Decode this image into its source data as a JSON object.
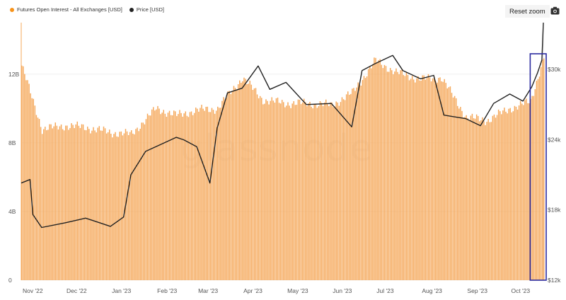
{
  "legend": {
    "items": [
      {
        "label": "Futures Open Interest - All Exchanges [USD]",
        "color": "#f7931a"
      },
      {
        "label": "Price [USD]",
        "color": "#222222"
      }
    ]
  },
  "toolbar": {
    "reset_label": "Reset zoom"
  },
  "watermark": {
    "text": "glassnode"
  },
  "chart_data": {
    "type": "bar",
    "series": [
      {
        "name": "Futures Open Interest - All Exchanges [USD]",
        "type": "bar",
        "axis": "left",
        "color": "#f5a85a",
        "x": [
          "2022-11-01",
          "2022-11-15",
          "2022-12-01",
          "2022-12-15",
          "2023-01-01",
          "2023-01-15",
          "2023-02-01",
          "2023-02-15",
          "2023-03-01",
          "2023-03-15",
          "2023-04-01",
          "2023-04-15",
          "2023-05-01",
          "2023-05-15",
          "2023-06-01",
          "2023-06-15",
          "2023-07-01",
          "2023-07-15",
          "2023-08-01",
          "2023-08-15",
          "2023-09-01",
          "2023-09-15",
          "2023-10-01",
          "2023-10-15",
          "2023-10-24"
        ],
        "values": [
          12.5,
          8.8,
          9.0,
          8.9,
          8.6,
          8.5,
          10.0,
          9.6,
          9.9,
          10.0,
          11.8,
          10.5,
          10.3,
          10.3,
          10.2,
          10.9,
          12.8,
          12.1,
          11.7,
          11.8,
          9.5,
          9.3,
          10.0,
          10.4,
          13.0
        ]
      },
      {
        "name": "Price [USD]",
        "type": "line",
        "axis": "right",
        "color": "#222222",
        "x": [
          "2022-11-01",
          "2022-11-07",
          "2022-11-09",
          "2022-11-15",
          "2022-12-01",
          "2022-12-15",
          "2023-01-01",
          "2023-01-10",
          "2023-01-15",
          "2023-01-25",
          "2023-02-15",
          "2023-02-20",
          "2023-03-01",
          "2023-03-10",
          "2023-03-15",
          "2023-03-22",
          "2023-04-01",
          "2023-04-12",
          "2023-04-20",
          "2023-05-01",
          "2023-05-15",
          "2023-06-01",
          "2023-06-15",
          "2023-06-22",
          "2023-07-01",
          "2023-07-13",
          "2023-07-20",
          "2023-08-01",
          "2023-08-10",
          "2023-08-17",
          "2023-09-01",
          "2023-09-11",
          "2023-09-20",
          "2023-10-01",
          "2023-10-10",
          "2023-10-16",
          "2023-10-20",
          "2023-10-23",
          "2023-10-24"
        ],
        "values": [
          20300,
          20600,
          17600,
          16500,
          16900,
          17300,
          16600,
          17400,
          21000,
          23000,
          24200,
          24000,
          23400,
          20300,
          25000,
          28000,
          28400,
          30300,
          28300,
          28900,
          27000,
          27100,
          25100,
          29900,
          30500,
          31200,
          29900,
          29200,
          29500,
          26100,
          25800,
          25200,
          27100,
          27900,
          27300,
          28500,
          29700,
          30800,
          34000
        ]
      }
    ],
    "y_left": {
      "ticks": [
        "0",
        "4B",
        "8B",
        "12B"
      ],
      "min": 0,
      "max": 15
    },
    "y_right": {
      "ticks": [
        "$12k",
        "$18k",
        "$24k",
        "$30k"
      ],
      "min": 12000,
      "max": 34000
    },
    "x_ticks": [
      "Nov '22",
      "Dec '22",
      "Jan '23",
      "Feb '23",
      "Mar '23",
      "Apr '23",
      "May '23",
      "Jun '23",
      "Jul '23",
      "Aug '23",
      "Sep '23",
      "Oct '23"
    ],
    "x_range": [
      "2022-11-01",
      "2023-10-24"
    ],
    "grid": true,
    "legend_position": "top-left",
    "highlight": {
      "from": "2023-10-15",
      "to": "2023-10-24",
      "color": "#2b2ba0"
    }
  }
}
